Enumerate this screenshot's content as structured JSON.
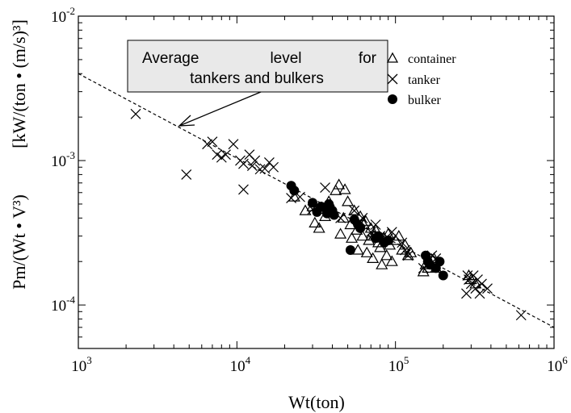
{
  "chart_data": {
    "type": "scatter",
    "xlabel": "Wt(ton)",
    "ylabel_left": "Pm/(Wt • V³)",
    "ylabel_right": "[kW/(ton • (m/s)³]",
    "xscale": "log",
    "yscale": "log",
    "xlim": [
      1000,
      1000000
    ],
    "ylim": [
      5e-05,
      0.01
    ],
    "grid": false,
    "legend_position": "top-right",
    "x_ticks": [
      {
        "base": "10",
        "exp": "3",
        "value": 1000
      },
      {
        "base": "10",
        "exp": "4",
        "value": 10000
      },
      {
        "base": "10",
        "exp": "5",
        "value": 100000
      },
      {
        "base": "10",
        "exp": "6",
        "value": 1000000
      }
    ],
    "y_ticks": [
      {
        "base": "10",
        "exp": "-2",
        "value": 0.01
      },
      {
        "base": "10",
        "exp": "-3",
        "value": 0.001
      },
      {
        "base": "10",
        "exp": "-4",
        "value": 0.0001
      }
    ],
    "annotation": {
      "line1_words": [
        "Average",
        "level",
        "for"
      ],
      "line2": "tankers and bulkers"
    },
    "trend_line": {
      "style": "dashed",
      "points": [
        [
          1000,
          0.004
        ],
        [
          1000000,
          7e-05
        ]
      ]
    },
    "series": [
      {
        "name": "container",
        "marker": "triangle-open",
        "points": [
          [
            23000,
            0.00056
          ],
          [
            27000,
            0.00045
          ],
          [
            30000,
            0.00048
          ],
          [
            31000,
            0.00037
          ],
          [
            33000,
            0.00034
          ],
          [
            34000,
            0.00046
          ],
          [
            36000,
            0.00041
          ],
          [
            38000,
            0.00052
          ],
          [
            40000,
            0.00044
          ],
          [
            42000,
            0.00062
          ],
          [
            44000,
            0.00068
          ],
          [
            45000,
            0.00031
          ],
          [
            47000,
            0.0004
          ],
          [
            48000,
            0.00063
          ],
          [
            50000,
            0.00052
          ],
          [
            52000,
            0.00036
          ],
          [
            53000,
            0.00029
          ],
          [
            55000,
            0.00045
          ],
          [
            57000,
            0.00033
          ],
          [
            58000,
            0.00024
          ],
          [
            60000,
            0.00041
          ],
          [
            62000,
            0.0003
          ],
          [
            63000,
            0.00036
          ],
          [
            65000,
            0.00038
          ],
          [
            66000,
            0.00023
          ],
          [
            68000,
            0.00028
          ],
          [
            70000,
            0.00034
          ],
          [
            72000,
            0.00021
          ],
          [
            73000,
            0.0003
          ],
          [
            75000,
            0.00033
          ],
          [
            78000,
            0.00027
          ],
          [
            80000,
            0.00025
          ],
          [
            82000,
            0.00019
          ],
          [
            85000,
            0.00029
          ],
          [
            88000,
            0.00022
          ],
          [
            90000,
            0.00031
          ],
          [
            92000,
            0.00026
          ],
          [
            95000,
            0.0002
          ],
          [
            100000,
            0.00028
          ],
          [
            105000,
            0.0003
          ],
          [
            110000,
            0.00024
          ],
          [
            115000,
            0.00026
          ],
          [
            120000,
            0.00022
          ],
          [
            125000,
            0.00023
          ],
          [
            150000,
            0.00017
          ],
          [
            155000,
            0.00019
          ],
          [
            160000,
            0.00018
          ],
          [
            175000,
            0.00021
          ],
          [
            180000,
            0.00018
          ],
          [
            290000,
            0.00016
          ],
          [
            300000,
            0.00015
          ],
          [
            320000,
            0.00014
          ]
        ]
      },
      {
        "name": "tanker",
        "marker": "x",
        "points": [
          [
            2300,
            0.0021
          ],
          [
            4800,
            0.0008
          ],
          [
            6500,
            0.0013
          ],
          [
            7000,
            0.00135
          ],
          [
            7500,
            0.0011
          ],
          [
            8000,
            0.00105
          ],
          [
            8500,
            0.0011
          ],
          [
            9500,
            0.0013
          ],
          [
            10500,
            0.001
          ],
          [
            11000,
            0.00095
          ],
          [
            11000,
            0.00063
          ],
          [
            12000,
            0.0011
          ],
          [
            12500,
            0.00092
          ],
          [
            13000,
            0.001
          ],
          [
            14000,
            0.00087
          ],
          [
            15000,
            0.00088
          ],
          [
            16000,
            0.00097
          ],
          [
            17000,
            0.0009
          ],
          [
            22000,
            0.00055
          ],
          [
            25000,
            0.00056
          ],
          [
            30000,
            0.00046
          ],
          [
            32000,
            0.00048
          ],
          [
            36000,
            0.00065
          ],
          [
            45000,
            0.0004
          ],
          [
            55000,
            0.00045
          ],
          [
            60000,
            0.00038
          ],
          [
            62000,
            0.0004
          ],
          [
            70000,
            0.00032
          ],
          [
            75000,
            0.00036
          ],
          [
            80000,
            0.0003
          ],
          [
            90000,
            0.00029
          ],
          [
            95000,
            0.00032
          ],
          [
            110000,
            0.00027
          ],
          [
            115000,
            0.00024
          ],
          [
            120000,
            0.00022
          ],
          [
            150000,
            0.00018
          ],
          [
            170000,
            0.00022
          ],
          [
            180000,
            0.00021
          ],
          [
            280000,
            0.00012
          ],
          [
            285000,
            0.00016
          ],
          [
            290000,
            0.00015
          ],
          [
            300000,
            0.00014
          ],
          [
            310000,
            0.00016
          ],
          [
            320000,
            0.00013
          ],
          [
            330000,
            0.00015
          ],
          [
            340000,
            0.00012
          ],
          [
            350000,
            0.00014
          ],
          [
            380000,
            0.00013
          ],
          [
            620000,
            8.5e-05
          ]
        ]
      },
      {
        "name": "bulker",
        "marker": "circle-filled",
        "points": [
          [
            22000,
            0.00067
          ],
          [
            23000,
            0.00062
          ],
          [
            30000,
            0.00051
          ],
          [
            32000,
            0.00044
          ],
          [
            34000,
            0.00048
          ],
          [
            36000,
            0.00047
          ],
          [
            37000,
            0.00043
          ],
          [
            38000,
            0.0005
          ],
          [
            40000,
            0.00045
          ],
          [
            41000,
            0.00042
          ],
          [
            52000,
            0.00024
          ],
          [
            55000,
            0.00039
          ],
          [
            58000,
            0.00036
          ],
          [
            60000,
            0.00034
          ],
          [
            75000,
            0.00029
          ],
          [
            78000,
            0.0003
          ],
          [
            85000,
            0.00027
          ],
          [
            90000,
            0.00028
          ],
          [
            155000,
            0.00022
          ],
          [
            160000,
            0.0002
          ],
          [
            165000,
            0.00019
          ],
          [
            180000,
            0.00018
          ],
          [
            190000,
            0.0002
          ],
          [
            200000,
            0.00016
          ]
        ]
      }
    ]
  }
}
